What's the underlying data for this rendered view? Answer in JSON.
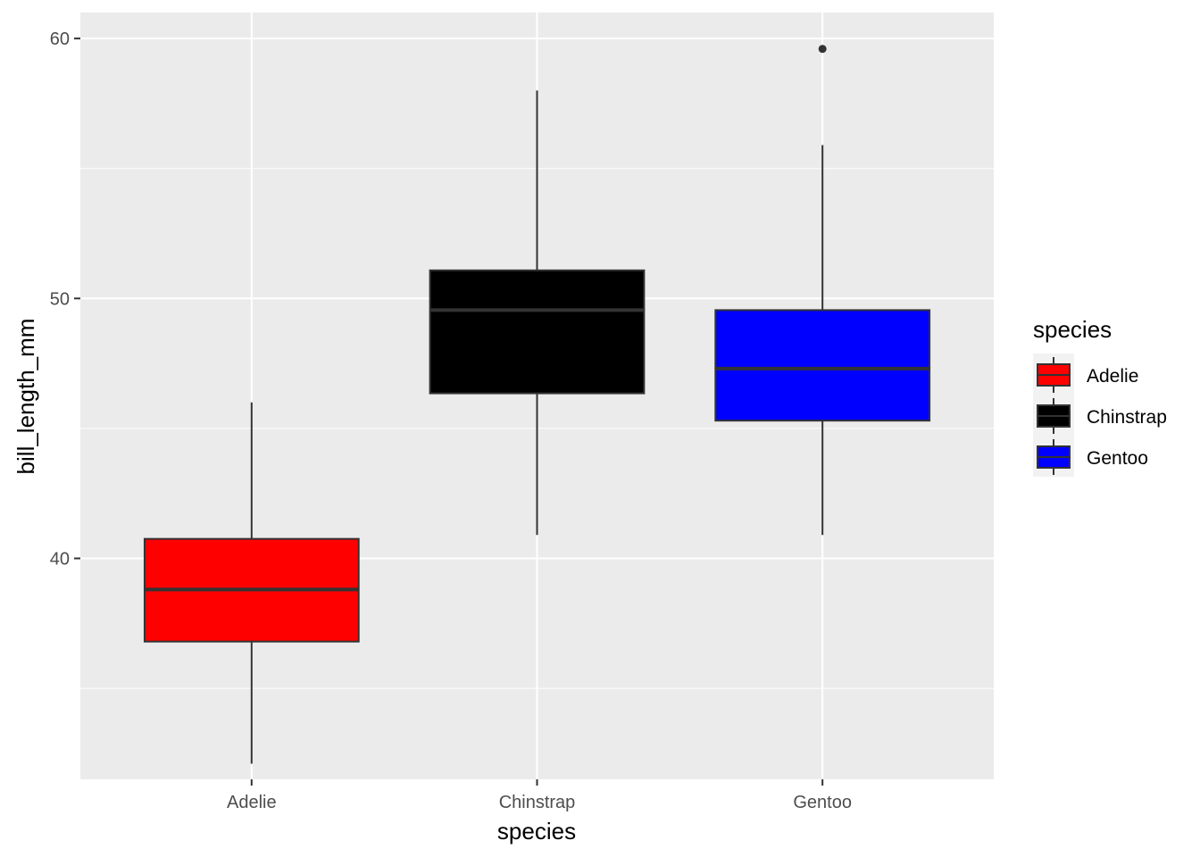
{
  "chart_data": {
    "type": "box",
    "xlabel": "species",
    "ylabel": "bill_length_mm",
    "categories": [
      "Adelie",
      "Chinstrap",
      "Gentoo"
    ],
    "ylim": [
      31.5,
      61.0
    ],
    "yticks": [
      40,
      50,
      60
    ],
    "ytick_labels": [
      "40",
      "50",
      "60"
    ],
    "grid": true,
    "series": [
      {
        "name": "Adelie",
        "fill": "#ff0000",
        "whisker_low": 32.1,
        "q1": 36.8,
        "median": 38.8,
        "q3": 40.75,
        "whisker_high": 46.0,
        "outliers": []
      },
      {
        "name": "Chinstrap",
        "fill": "#000000",
        "whisker_low": 40.9,
        "q1": 46.35,
        "median": 49.55,
        "q3": 51.08,
        "whisker_high": 58.0,
        "outliers": []
      },
      {
        "name": "Gentoo",
        "fill": "#0000ff",
        "whisker_low": 40.9,
        "q1": 45.3,
        "median": 47.3,
        "q3": 49.55,
        "whisker_high": 55.9,
        "outliers": [
          59.6
        ]
      }
    ],
    "legend": {
      "title": "species",
      "position": "right",
      "items": [
        "Adelie",
        "Chinstrap",
        "Gentoo"
      ]
    },
    "colors": {
      "panel_background": "#ebebeb",
      "grid": "#ffffff",
      "box_outline": "#333333"
    }
  }
}
